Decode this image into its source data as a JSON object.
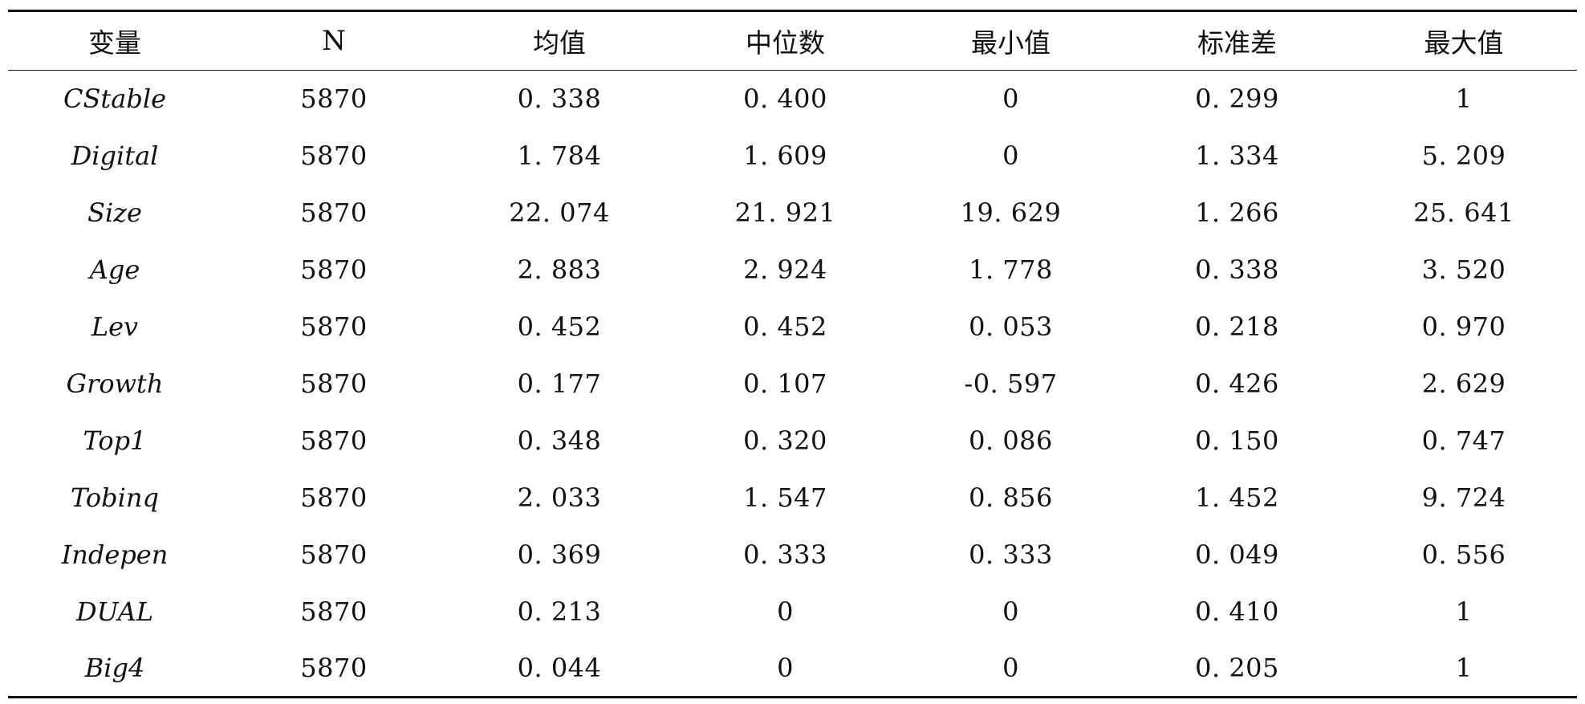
{
  "table": {
    "headers": [
      "变量",
      "N",
      "均值",
      "中位数",
      "最小值",
      "标准差",
      "最大值"
    ],
    "rows": [
      {
        "var": "CStable",
        "n": "5870",
        "mean": "0. 338",
        "median": "0. 400",
        "min": "0",
        "sd": "0. 299",
        "max": "1"
      },
      {
        "var": "Digital",
        "n": "5870",
        "mean": "1. 784",
        "median": "1. 609",
        "min": "0",
        "sd": "1. 334",
        "max": "5. 209"
      },
      {
        "var": "Size",
        "n": "5870",
        "mean": "22. 074",
        "median": "21. 921",
        "min": "19. 629",
        "sd": "1. 266",
        "max": "25. 641"
      },
      {
        "var": "Age",
        "n": "5870",
        "mean": "2. 883",
        "median": "2. 924",
        "min": "1. 778",
        "sd": "0. 338",
        "max": "3. 520"
      },
      {
        "var": "Lev",
        "n": "5870",
        "mean": "0. 452",
        "median": "0. 452",
        "min": "0. 053",
        "sd": "0. 218",
        "max": "0. 970"
      },
      {
        "var": "Growth",
        "n": "5870",
        "mean": "0. 177",
        "median": "0. 107",
        "min": "-0. 597",
        "sd": "0. 426",
        "max": "2. 629"
      },
      {
        "var": "Top1",
        "n": "5870",
        "mean": "0. 348",
        "median": "0. 320",
        "min": "0. 086",
        "sd": "0. 150",
        "max": "0. 747"
      },
      {
        "var": "Tobinq",
        "n": "5870",
        "mean": "2. 033",
        "median": "1. 547",
        "min": "0. 856",
        "sd": "1. 452",
        "max": "9. 724"
      },
      {
        "var": "Indepen",
        "n": "5870",
        "mean": "0. 369",
        "median": "0. 333",
        "min": "0. 333",
        "sd": "0. 049",
        "max": "0. 556"
      },
      {
        "var": "DUAL",
        "n": "5870",
        "mean": "0. 213",
        "median": "0",
        "min": "0",
        "sd": "0. 410",
        "max": "1"
      },
      {
        "var": "Big4",
        "n": "5870",
        "mean": "0. 044",
        "median": "0",
        "min": "0",
        "sd": "0. 205",
        "max": "1"
      }
    ]
  }
}
